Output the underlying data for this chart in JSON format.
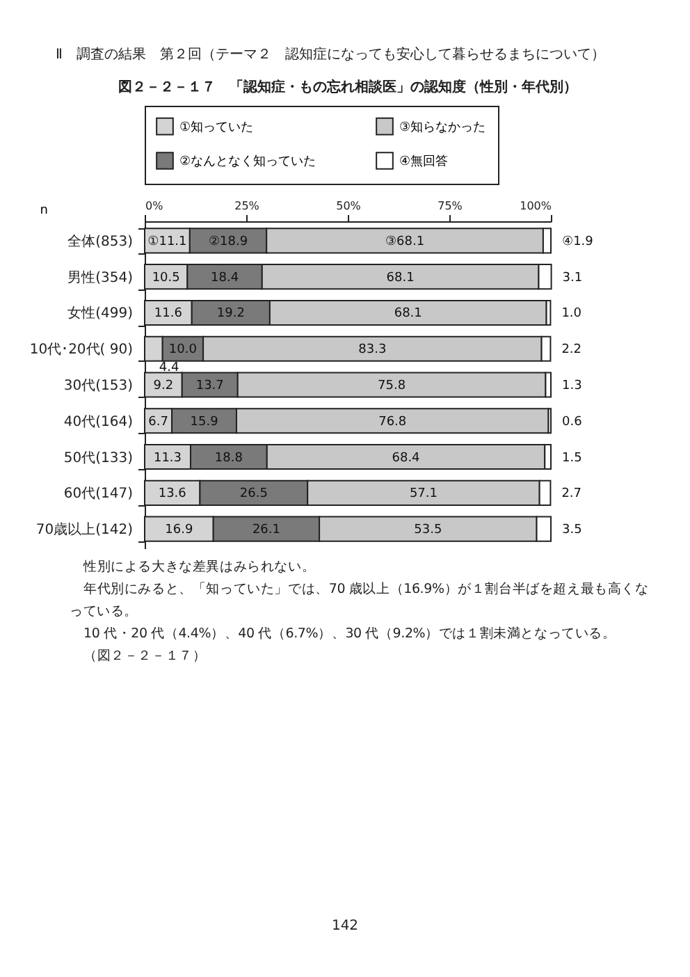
{
  "chart_data": {
    "type": "bar",
    "orientation": "horizontal",
    "stacked": true,
    "title": "図２－２－１７　「認知症・もの忘れ相談医」の認知度（性別・年代別）",
    "ylabel": "n",
    "categories": [
      "全体(853)",
      "男性(354)",
      "女性(499)",
      "10代･20代( 90)",
      "30代(153)",
      "40代(164)",
      "50代(133)",
      "60代(147)",
      "70歳以上(142)"
    ],
    "series": [
      {
        "name": "①知っていた",
        "color": "#d4d4d4",
        "values": [
          11.1,
          10.5,
          11.6,
          4.4,
          9.2,
          6.7,
          11.3,
          13.6,
          16.9
        ],
        "value_labels": [
          "①11.1",
          "10.5",
          "11.6",
          "4.4",
          "9.2",
          "6.7",
          "11.3",
          "13.6",
          "16.9"
        ]
      },
      {
        "name": "②なんとなく知っていた",
        "color": "#7a7a7a",
        "values": [
          18.9,
          18.4,
          19.2,
          10.0,
          13.7,
          15.9,
          18.8,
          26.5,
          26.1
        ],
        "value_labels": [
          "②18.9",
          "18.4",
          "19.2",
          "10.0",
          "13.7",
          "15.9",
          "18.8",
          "26.5",
          "26.1"
        ]
      },
      {
        "name": "③知らなかった",
        "color": "#c8c8c8",
        "values": [
          68.1,
          68.1,
          68.1,
          83.3,
          75.8,
          76.8,
          68.4,
          57.1,
          53.5
        ],
        "value_labels": [
          "③68.1",
          "68.1",
          "68.1",
          "83.3",
          "75.8",
          "76.8",
          "68.4",
          "57.1",
          "53.5"
        ]
      },
      {
        "name": "④無回答",
        "color": "#ffffff",
        "values": [
          1.9,
          3.1,
          1.0,
          2.2,
          1.3,
          0.6,
          1.5,
          2.7,
          3.5
        ],
        "value_labels": [
          "④1.9",
          "3.1",
          "1.0",
          "2.2",
          "1.3",
          "0.6",
          "1.5",
          "2.7",
          "3.5"
        ]
      }
    ],
    "xlim": [
      0,
      100
    ],
    "xticks": [
      {
        "value": 0,
        "label": "0%"
      },
      {
        "value": 25,
        "label": "25%"
      },
      {
        "value": 50,
        "label": "50%"
      },
      {
        "value": 75,
        "label": "75%"
      },
      {
        "value": 100,
        "label": "100%"
      }
    ],
    "grid": false,
    "legend": "top",
    "annotations": [
      "Ⅱ　調査の結果　第２回（テーマ２　認知症になっても安心して暮らせるまちについて）",
      "性別による大きな差異はみられない。",
      "年代別にみると、「知っていた」では、70 歳以上（16.9%）が１割台半ばを超え最も高くなっている。",
      "10 代・20 代（4.4%）、40 代（6.7%）、30 代（9.2%）では１割未満となっている。",
      "（図２－２－１７）",
      "142"
    ]
  }
}
